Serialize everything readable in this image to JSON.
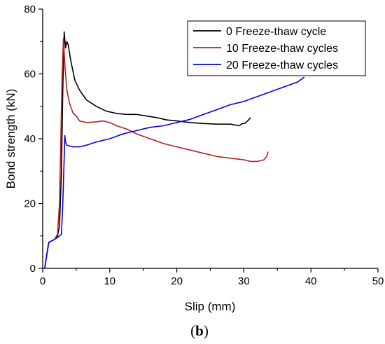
{
  "chart_data": {
    "type": "line",
    "xlabel": "Slip (mm)",
    "ylabel": "Bond strength (kN)",
    "xlim": [
      0,
      50
    ],
    "ylim": [
      0,
      80
    ],
    "xticks": [
      0,
      10,
      20,
      30,
      40,
      50
    ],
    "yticks": [
      0,
      20,
      40,
      60,
      80
    ],
    "legend_position": "top-right",
    "grid": false,
    "panel_label": {
      "open": "(",
      "letter": "b",
      "close": ")"
    },
    "series": [
      {
        "name": "0 Freeze-thaw cycle",
        "color": "#000000",
        "points": [
          [
            0.3,
            0
          ],
          [
            0.6,
            4
          ],
          [
            0.9,
            8
          ],
          [
            1.4,
            8.5
          ],
          [
            1.8,
            9
          ],
          [
            2.2,
            10
          ],
          [
            2.5,
            13
          ],
          [
            2.8,
            30
          ],
          [
            3.0,
            55
          ],
          [
            3.2,
            73
          ],
          [
            3.4,
            68
          ],
          [
            3.6,
            70
          ],
          [
            3.8,
            69
          ],
          [
            4.2,
            64
          ],
          [
            4.8,
            58
          ],
          [
            5.5,
            55
          ],
          [
            6.5,
            52
          ],
          [
            8,
            50
          ],
          [
            9.5,
            48.5
          ],
          [
            11,
            47.8
          ],
          [
            12.5,
            47.5
          ],
          [
            14,
            47.5
          ],
          [
            15.5,
            47
          ],
          [
            17,
            46.5
          ],
          [
            18.5,
            45.8
          ],
          [
            20,
            45.5
          ],
          [
            22,
            45
          ],
          [
            24,
            44.7
          ],
          [
            26,
            44.5
          ],
          [
            28,
            44.5
          ],
          [
            29.3,
            44
          ],
          [
            29.7,
            44.6
          ],
          [
            30.2,
            44.8
          ],
          [
            30.7,
            45.8
          ],
          [
            31,
            46.5
          ]
        ]
      },
      {
        "name": "10 Freeze-thaw cycles",
        "color": "#b22222",
        "points": [
          [
            0.3,
            0
          ],
          [
            0.6,
            4
          ],
          [
            0.9,
            8
          ],
          [
            1.4,
            8.5
          ],
          [
            1.8,
            9
          ],
          [
            2.2,
            10.5
          ],
          [
            2.5,
            20
          ],
          [
            2.7,
            40
          ],
          [
            2.9,
            60
          ],
          [
            3.1,
            71
          ],
          [
            3.3,
            63
          ],
          [
            3.6,
            55
          ],
          [
            4.0,
            51
          ],
          [
            4.5,
            48
          ],
          [
            5,
            47
          ],
          [
            5.5,
            45.5
          ],
          [
            6.5,
            45
          ],
          [
            8,
            45.2
          ],
          [
            9,
            45.5
          ],
          [
            10,
            45
          ],
          [
            11,
            44
          ],
          [
            12.5,
            43
          ],
          [
            14,
            41.5
          ],
          [
            16,
            40
          ],
          [
            18,
            38.5
          ],
          [
            20,
            37.5
          ],
          [
            22,
            36.5
          ],
          [
            24,
            35.5
          ],
          [
            26,
            34.5
          ],
          [
            28,
            34
          ],
          [
            30,
            33.5
          ],
          [
            31,
            33
          ],
          [
            32,
            33
          ],
          [
            33,
            33.5
          ],
          [
            33.4,
            34.5
          ],
          [
            33.6,
            36
          ]
        ]
      },
      {
        "name": "20 Freeze-thaw cycles",
        "color": "#0000ee",
        "points": [
          [
            0.3,
            0
          ],
          [
            0.6,
            4
          ],
          [
            0.9,
            8
          ],
          [
            1.4,
            8.5
          ],
          [
            1.8,
            9
          ],
          [
            2.2,
            9.5
          ],
          [
            2.8,
            10.5
          ],
          [
            3.0,
            20
          ],
          [
            3.2,
            34
          ],
          [
            3.3,
            41
          ],
          [
            3.4,
            39
          ],
          [
            3.6,
            38
          ],
          [
            4.5,
            37.5
          ],
          [
            5.5,
            37.5
          ],
          [
            6.5,
            38
          ],
          [
            8,
            39
          ],
          [
            10,
            40
          ],
          [
            12,
            41.5
          ],
          [
            14,
            42.5
          ],
          [
            16,
            43.5
          ],
          [
            18,
            44
          ],
          [
            20,
            45
          ],
          [
            22,
            46
          ],
          [
            24,
            47.5
          ],
          [
            26,
            49
          ],
          [
            28,
            50.5
          ],
          [
            30,
            51.5
          ],
          [
            32,
            53
          ],
          [
            34,
            54.5
          ],
          [
            36,
            56
          ],
          [
            38,
            57.5
          ],
          [
            39,
            59
          ]
        ]
      }
    ]
  }
}
